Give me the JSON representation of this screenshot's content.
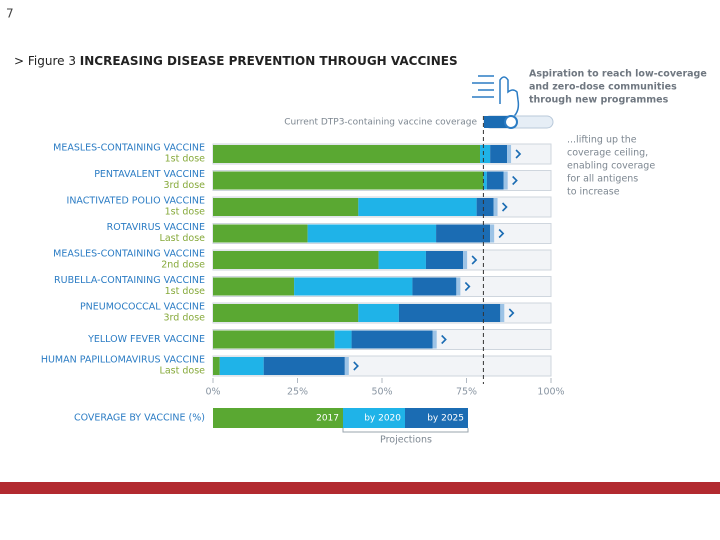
{
  "page_number": "7",
  "chart_data": {
    "type": "stacked-barh",
    "title_prefix": "> Figure 3",
    "title": "INCREASING DISEASE PREVENTION THROUGH VACCINES",
    "categories": [
      "MEASLES-CONTAINING VACCINE",
      "PENTAVALENT VACCINE",
      "INACTIVATED POLIO VACCINE",
      "ROTAVIRUS VACCINE",
      "MEASLES-CONTAINING VACCINE",
      "RUBELLA-CONTAINING VACCINE",
      "PNEUMOCOCCAL VACCINE",
      "YELLOW FEVER VACCINE",
      "HUMAN PAPILLOMAVIRUS VACCINE"
    ],
    "doses": [
      "1st dose",
      "3rd dose",
      "1st dose",
      "Last dose",
      "2nd dose",
      "1st dose",
      "3rd dose",
      null,
      "Last dose"
    ],
    "series": [
      {
        "name": "2017",
        "color": "#5aa832",
        "values": [
          79,
          80,
          43,
          28,
          49,
          24,
          43,
          36,
          2
        ]
      },
      {
        "name": "by 2020",
        "color": "#1fb3e8",
        "values": [
          3,
          1,
          35,
          38,
          14,
          35,
          12,
          5,
          13
        ]
      },
      {
        "name": "by 2025",
        "color": "#1b6cb3",
        "values": [
          5,
          5,
          5,
          16,
          11,
          13,
          30,
          24,
          24
        ]
      }
    ],
    "xlim": [
      0,
      100
    ],
    "xticks": [
      {
        "value": 0,
        "label": "0%"
      },
      {
        "value": 25,
        "label": "25%"
      },
      {
        "value": 50,
        "label": "50%"
      },
      {
        "value": 75,
        "label": "75%"
      },
      {
        "value": 100,
        "label": "100%"
      }
    ],
    "current_coverage": 80,
    "current_coverage_label": "Current DTP3-containing vaccine coverage",
    "aspiration_note": [
      "Aspiration to reach low-coverage",
      "and zero-dose communities",
      "through new programmes"
    ],
    "ceiling_note": [
      "...lifting up the",
      "coverage ceiling,",
      "enabling coverage",
      "for all antigens",
      "to increase"
    ],
    "legend_title": "COVERAGE BY VACCINE (%)",
    "legend_projections": "Projections"
  }
}
